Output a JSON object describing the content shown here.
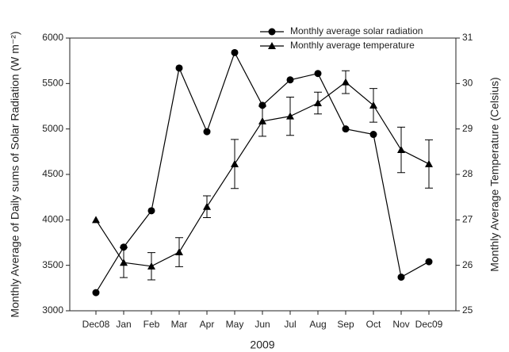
{
  "chart_data": {
    "type": "line",
    "x_label": "2009",
    "y_label": "Monthly Average of Daily sums of Solar Radiation (W m⁻²)",
    "y2_label": "Monthly Average Temperature (Celsius)",
    "categories": [
      "Dec08",
      "Jan",
      "Feb",
      "Mar",
      "Apr",
      "May",
      "Jun",
      "Jul",
      "Aug",
      "Sep",
      "Oct",
      "Nov",
      "Dec09"
    ],
    "series": [
      {
        "name": "Monthly average solar radiation",
        "color": "#000000",
        "marker": "circle",
        "values": [
          3200,
          3700,
          4100,
          5670,
          4970,
          5840,
          5260,
          5540,
          5610,
          5000,
          4940,
          3370,
          3540
        ]
      },
      {
        "name": "Monthly average temperature",
        "color": "#000000",
        "marker": "triangle",
        "axis": "y2",
        "values": [
          27.0,
          26.06,
          25.98,
          26.29,
          27.29,
          28.23,
          29.17,
          29.28,
          29.57,
          30.03,
          29.52,
          28.54,
          28.23
        ],
        "errors": [
          null,
          0.33,
          0.3,
          0.32,
          0.24,
          0.54,
          0.33,
          0.42,
          0.24,
          0.25,
          0.37,
          0.5,
          0.53
        ]
      }
    ],
    "ylim": [
      3000,
      6000
    ],
    "yticks": [
      3000,
      3500,
      4000,
      4500,
      5000,
      5500,
      6000
    ],
    "y2lim": [
      25,
      31
    ],
    "y2ticks": [
      25,
      26,
      27,
      28,
      29,
      30,
      31
    ],
    "grid": false,
    "legend": "top"
  }
}
